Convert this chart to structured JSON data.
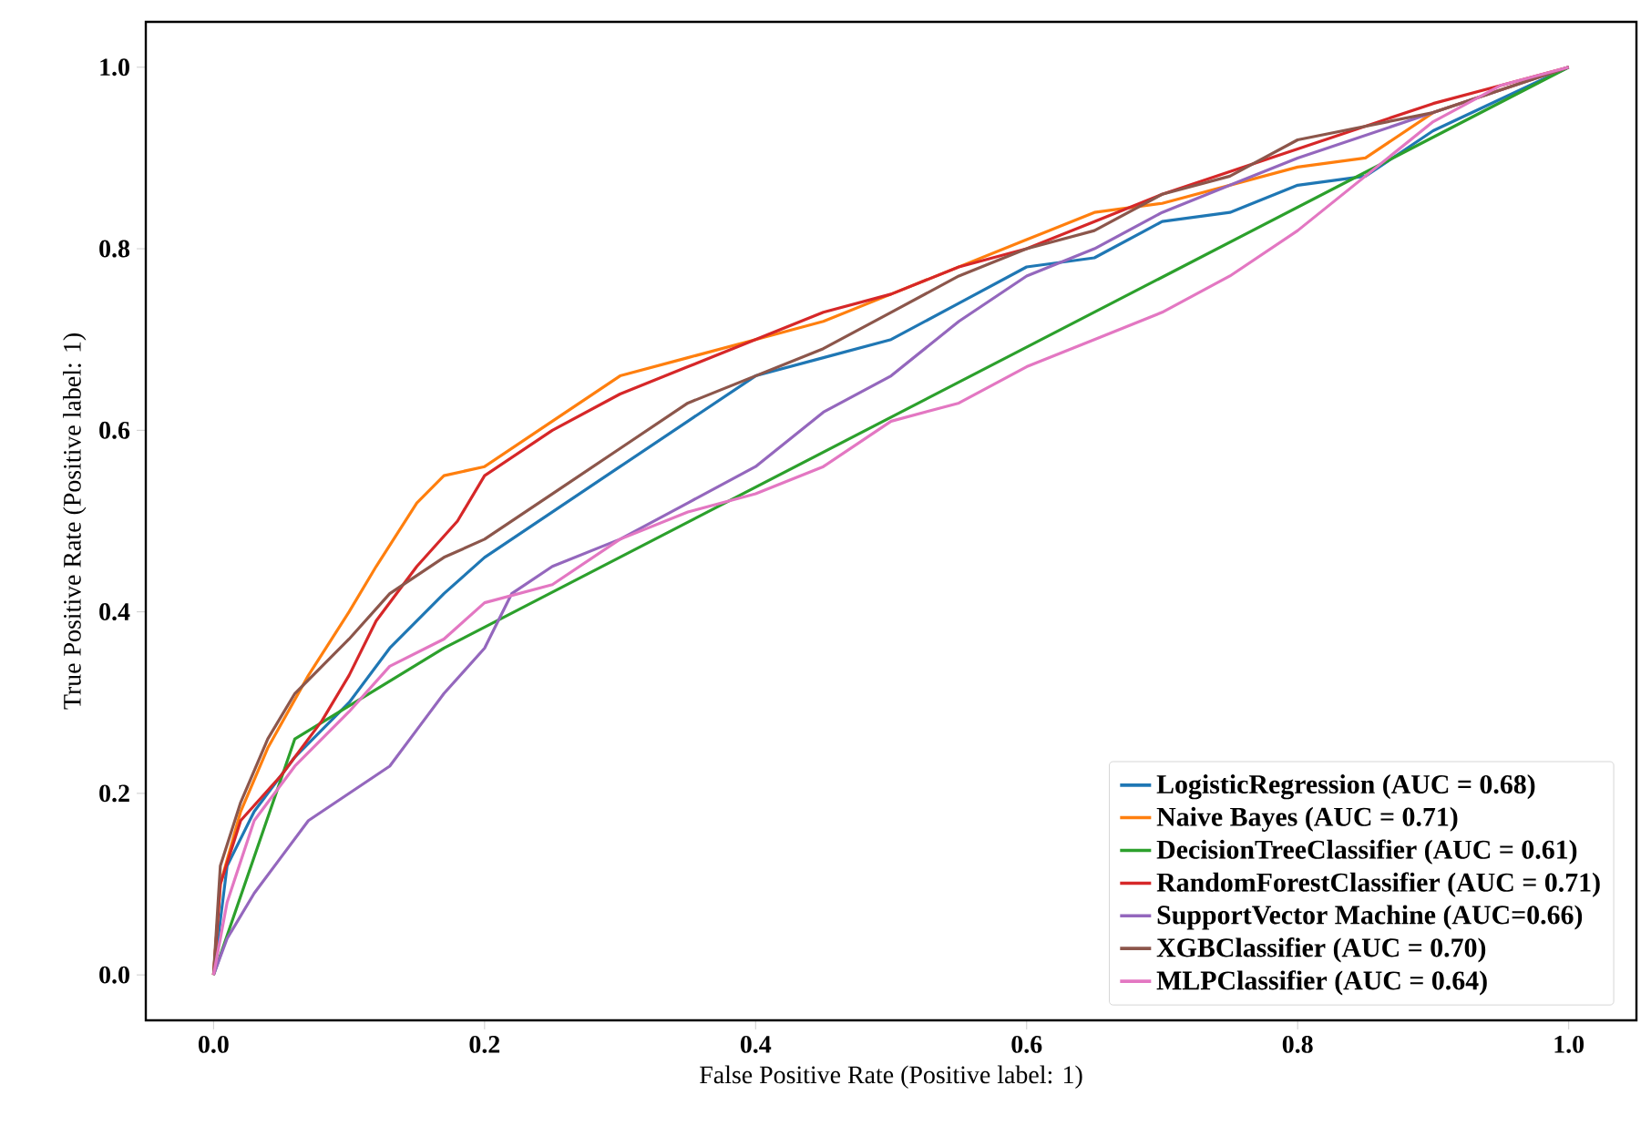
{
  "chart_data": {
    "type": "line",
    "xlabel": "False Positive Rate (Positive label: 1)",
    "ylabel": "True Positive Rate (Positive label: 1)",
    "xlim": [
      -0.05,
      1.05
    ],
    "ylim": [
      -0.05,
      1.05
    ],
    "xticks": [
      {
        "value": 0,
        "label": "0.0"
      },
      0.2,
      0.4,
      0.6,
      0.8,
      {
        "value": 1,
        "label": "1.0"
      }
    ],
    "yticks": [
      {
        "value": 0,
        "label": "0.0"
      },
      0.2,
      0.4,
      0.6,
      0.8,
      {
        "value": 1,
        "label": "1.0"
      }
    ],
    "legend": "bottom right",
    "grid": false,
    "marker": "none",
    "line_style": "solid",
    "series": [
      {
        "name": "LogisticRegression (AUC = 0.68)",
        "color": "#1f77b4",
        "x": [
          0,
          0.01,
          0.03,
          0.06,
          0.1,
          0.13,
          0.17,
          0.2,
          0.25,
          0.3,
          0.35,
          0.4,
          0.45,
          0.5,
          0.55,
          0.6,
          0.65,
          0.7,
          0.75,
          0.8,
          0.85,
          0.9,
          1
        ],
        "values": [
          0,
          0.12,
          0.18,
          0.24,
          0.3,
          0.36,
          0.42,
          0.46,
          0.51,
          0.56,
          0.61,
          0.66,
          0.68,
          0.7,
          0.74,
          0.78,
          0.79,
          0.83,
          0.84,
          0.87,
          0.88,
          0.93,
          1
        ]
      },
      {
        "name": "Naive Bayes (AUC = 0.71)",
        "color": "#ff7f0e",
        "x": [
          0,
          0.005,
          0.02,
          0.04,
          0.07,
          0.1,
          0.12,
          0.15,
          0.17,
          0.2,
          0.25,
          0.3,
          0.35,
          0.4,
          0.45,
          0.5,
          0.55,
          0.6,
          0.65,
          0.7,
          0.8,
          0.85,
          0.9,
          1
        ],
        "values": [
          0,
          0.1,
          0.18,
          0.25,
          0.33,
          0.4,
          0.45,
          0.52,
          0.55,
          0.56,
          0.61,
          0.66,
          0.68,
          0.7,
          0.72,
          0.75,
          0.78,
          0.81,
          0.84,
          0.85,
          0.89,
          0.9,
          0.95,
          1
        ]
      },
      {
        "name": "DecisionTreeClassifier (AUC = 0.61)",
        "color": "#2ca02c",
        "x": [
          0,
          0.06,
          0.17,
          1
        ],
        "values": [
          0,
          0.26,
          0.36,
          1
        ]
      },
      {
        "name": "RandomForestClassifier (AUC = 0.71)",
        "color": "#d62728",
        "x": [
          0,
          0.005,
          0.02,
          0.05,
          0.08,
          0.1,
          0.12,
          0.15,
          0.18,
          0.2,
          0.25,
          0.3,
          0.35,
          0.4,
          0.45,
          0.5,
          0.55,
          0.6,
          0.65,
          0.7,
          0.8,
          0.9,
          0.95,
          1
        ],
        "values": [
          0,
          0.1,
          0.17,
          0.22,
          0.28,
          0.33,
          0.39,
          0.45,
          0.5,
          0.55,
          0.6,
          0.64,
          0.67,
          0.7,
          0.73,
          0.75,
          0.78,
          0.8,
          0.83,
          0.86,
          0.91,
          0.96,
          0.98,
          1
        ]
      },
      {
        "name": "SupportVector Machine (AUC=0.66)",
        "color": "#9467bd",
        "x": [
          0,
          0.01,
          0.03,
          0.05,
          0.07,
          0.1,
          0.13,
          0.15,
          0.17,
          0.2,
          0.22,
          0.25,
          0.3,
          0.35,
          0.4,
          0.45,
          0.5,
          0.55,
          0.6,
          0.65,
          0.7,
          0.75,
          0.8,
          0.9,
          1
        ],
        "values": [
          0,
          0.04,
          0.09,
          0.13,
          0.17,
          0.2,
          0.23,
          0.27,
          0.31,
          0.36,
          0.42,
          0.45,
          0.48,
          0.52,
          0.56,
          0.62,
          0.66,
          0.72,
          0.77,
          0.8,
          0.84,
          0.87,
          0.9,
          0.95,
          1
        ]
      },
      {
        "name": "XGBClassifier (AUC = 0.70)",
        "color": "#8c564b",
        "x": [
          0,
          0.005,
          0.02,
          0.04,
          0.06,
          0.1,
          0.13,
          0.17,
          0.2,
          0.25,
          0.3,
          0.35,
          0.4,
          0.45,
          0.5,
          0.55,
          0.6,
          0.65,
          0.7,
          0.75,
          0.8,
          0.9,
          1
        ],
        "values": [
          0,
          0.12,
          0.19,
          0.26,
          0.31,
          0.37,
          0.42,
          0.46,
          0.48,
          0.53,
          0.58,
          0.63,
          0.66,
          0.69,
          0.73,
          0.77,
          0.8,
          0.82,
          0.86,
          0.88,
          0.92,
          0.95,
          1
        ]
      },
      {
        "name": "MLPClassifier (AUC = 0.64)",
        "color": "#e377c2",
        "x": [
          0,
          0.01,
          0.03,
          0.06,
          0.1,
          0.13,
          0.17,
          0.2,
          0.25,
          0.3,
          0.35,
          0.4,
          0.45,
          0.5,
          0.55,
          0.6,
          0.65,
          0.7,
          0.75,
          0.8,
          0.85,
          0.9,
          0.95,
          1
        ],
        "values": [
          0,
          0.08,
          0.17,
          0.23,
          0.29,
          0.34,
          0.37,
          0.41,
          0.43,
          0.48,
          0.51,
          0.53,
          0.56,
          0.61,
          0.63,
          0.67,
          0.7,
          0.73,
          0.77,
          0.82,
          0.88,
          0.94,
          0.98,
          1
        ]
      }
    ]
  }
}
